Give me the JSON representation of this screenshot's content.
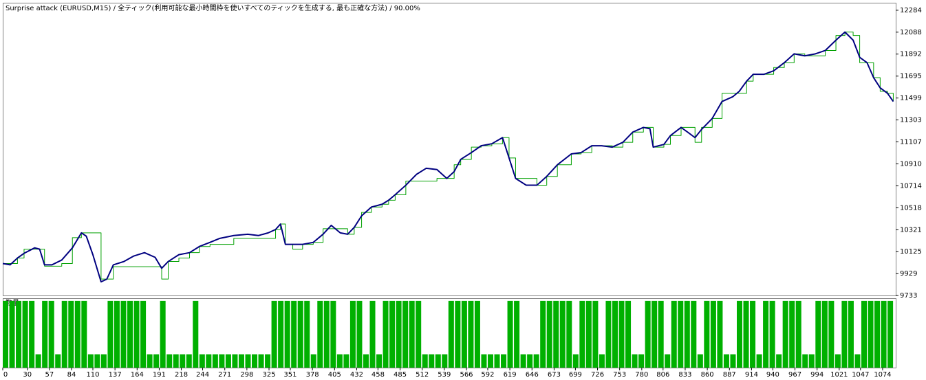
{
  "chart_data": [
    {
      "type": "line",
      "title": "Surprise attack (EURUSD,M15)  /  全ティック(利用可能な最小時間枠を使いすべてのティックを生成する, 最も正確な方法)  /  90.00%",
      "x": [
        0,
        9,
        18,
        26,
        39,
        45,
        51,
        60,
        72,
        85,
        96,
        102,
        110,
        120,
        127,
        135,
        148,
        160,
        173,
        186,
        194,
        202,
        215,
        228,
        240,
        253,
        265,
        282,
        299,
        312,
        324,
        333,
        339,
        345,
        354,
        366,
        379,
        391,
        401,
        412,
        421,
        429,
        438,
        450,
        463,
        471,
        479,
        492,
        505,
        517,
        530,
        542,
        551,
        559,
        572,
        584,
        597,
        610,
        618,
        626,
        639,
        652,
        664,
        677,
        694,
        706,
        719,
        731,
        744,
        757,
        769,
        782,
        790,
        794,
        807,
        815,
        828,
        836,
        845,
        853,
        866,
        878,
        891,
        899,
        908,
        916,
        929,
        941,
        954,
        966,
        979,
        992,
        1004,
        1017,
        1028,
        1038,
        1046,
        1055,
        1063,
        1071,
        1080,
        1087
      ],
      "series": [
        {
          "color": "#00a000",
          "step": true,
          "values": [
            10019,
            10019,
            10068,
            10147,
            10147,
            10147,
            9995,
            9995,
            10019,
            10250,
            10293,
            10293,
            10293,
            9880,
            9880,
            9990,
            9990,
            9990,
            9990,
            9990,
            9880,
            10037,
            10068,
            10116,
            10171,
            10190,
            10190,
            10244,
            10244,
            10244,
            10244,
            10323,
            10372,
            10190,
            10147,
            10190,
            10208,
            10330,
            10330,
            10330,
            10281,
            10342,
            10476,
            10524,
            10549,
            10585,
            10634,
            10756,
            10756,
            10756,
            10780,
            10780,
            10902,
            10950,
            11060,
            11072,
            11090,
            11145,
            10963,
            10780,
            10780,
            10719,
            10798,
            10902,
            10999,
            11011,
            11072,
            11072,
            11060,
            11103,
            11194,
            11236,
            11236,
            11060,
            11084,
            11163,
            11236,
            11236,
            11103,
            11236,
            11316,
            11541,
            11541,
            11541,
            11650,
            11711,
            11711,
            11772,
            11815,
            11894,
            11876,
            11876,
            11924,
            12058,
            12089,
            12058,
            11815,
            11815,
            11681,
            11559,
            11541,
            11468
          ]
        },
        {
          "color": "#000080",
          "step": false,
          "values": [
            10019,
            10007,
            10068,
            10110,
            10159,
            10147,
            10007,
            10007,
            10050,
            10159,
            10293,
            10263,
            10098,
            9855,
            9879,
            10007,
            10037,
            10086,
            10116,
            10074,
            9976,
            10037,
            10098,
            10116,
            10171,
            10208,
            10244,
            10269,
            10281,
            10269,
            10293,
            10323,
            10372,
            10190,
            10190,
            10190,
            10208,
            10281,
            10360,
            10293,
            10281,
            10342,
            10445,
            10524,
            10549,
            10585,
            10634,
            10719,
            10816,
            10871,
            10859,
            10780,
            10841,
            10950,
            11011,
            11072,
            11090,
            11145,
            10963,
            10780,
            10719,
            10719,
            10798,
            10902,
            10999,
            11011,
            11072,
            11072,
            11060,
            11103,
            11194,
            11236,
            11224,
            11060,
            11084,
            11163,
            11236,
            11194,
            11145,
            11218,
            11316,
            11468,
            11510,
            11559,
            11650,
            11711,
            11711,
            11742,
            11815,
            11894,
            11876,
            11894,
            11924,
            12016,
            12089,
            12016,
            11863,
            11815,
            11681,
            11590,
            11541,
            11468
          ]
        }
      ],
      "xlim": [
        0,
        1090
      ],
      "ylim": [
        9733,
        12351
      ],
      "yticks": [
        9733,
        9929,
        10125,
        10321,
        10518,
        10714,
        10910,
        11107,
        11303,
        11499,
        11695,
        11892,
        12088,
        12284
      ]
    },
    {
      "type": "bar",
      "label": "数量",
      "color": "#00b000",
      "x": [
        0,
        8,
        16,
        24,
        32,
        40,
        48,
        56,
        64,
        72,
        80,
        88,
        96,
        104,
        112,
        120,
        128,
        136,
        144,
        152,
        160,
        168,
        176,
        184,
        192,
        200,
        208,
        216,
        224,
        232,
        240,
        248,
        256,
        264,
        272,
        280,
        288,
        296,
        304,
        312,
        320,
        328,
        336,
        344,
        352,
        360,
        368,
        376,
        384,
        392,
        400,
        408,
        416,
        424,
        432,
        440,
        448,
        456,
        464,
        472,
        480,
        488,
        496,
        504,
        512,
        520,
        528,
        536,
        544,
        552,
        560,
        568,
        576,
        584,
        592,
        600,
        608,
        616,
        624,
        632,
        640,
        648,
        656,
        664,
        672,
        680,
        688,
        696,
        704,
        712,
        720,
        728,
        736,
        744,
        752,
        760,
        768,
        776,
        784,
        792,
        800,
        808,
        816,
        824,
        832,
        840,
        848,
        856,
        864,
        872,
        880,
        888,
        896,
        904,
        912,
        920,
        928,
        936,
        944,
        952,
        960,
        968,
        976,
        984,
        992,
        1000,
        1008,
        1016,
        1024,
        1032,
        1040,
        1048,
        1056,
        1064,
        1072,
        1080
      ],
      "values": [
        1,
        1,
        1,
        1,
        1,
        0.2,
        1,
        1,
        0.2,
        1,
        1,
        1,
        1,
        0.2,
        0.2,
        0.2,
        1,
        1,
        1,
        1,
        1,
        1,
        0.2,
        0.2,
        1,
        0.2,
        0.2,
        0.2,
        0.2,
        1,
        0.2,
        0.2,
        0.2,
        0.2,
        0.2,
        0.2,
        0.2,
        0.2,
        0.2,
        0.2,
        0.2,
        1,
        1,
        1,
        1,
        1,
        1,
        0.2,
        1,
        1,
        1,
        0.2,
        0.2,
        1,
        1,
        0.2,
        1,
        0.2,
        1,
        1,
        1,
        1,
        1,
        1,
        0.2,
        0.2,
        0.2,
        0.2,
        1,
        1,
        1,
        1,
        1,
        0.2,
        0.2,
        0.2,
        0.2,
        1,
        1,
        0.2,
        0.2,
        0.2,
        1,
        1,
        1,
        1,
        1,
        0.2,
        1,
        1,
        1,
        0.2,
        1,
        1,
        1,
        1,
        0.2,
        0.2,
        1,
        1,
        1,
        0.2,
        1,
        1,
        1,
        1,
        0.2,
        1,
        1,
        1,
        0.2,
        0.2,
        1,
        1,
        1,
        0.2,
        1,
        1,
        0.2,
        1,
        1,
        1,
        0.2,
        0.2,
        1,
        1,
        1,
        0.2,
        1,
        1,
        0.2,
        1,
        1,
        1,
        1,
        1
      ],
      "xlim": [
        0,
        1090
      ],
      "ylim": [
        0,
        1.04
      ],
      "xticks": [
        0,
        30,
        57,
        84,
        110,
        137,
        164,
        191,
        218,
        244,
        271,
        298,
        325,
        351,
        378,
        405,
        432,
        458,
        485,
        512,
        539,
        566,
        592,
        619,
        646,
        673,
        699,
        726,
        753,
        780,
        806,
        833,
        860,
        887,
        914,
        940,
        967,
        994,
        1021,
        1047,
        1074
      ]
    }
  ]
}
